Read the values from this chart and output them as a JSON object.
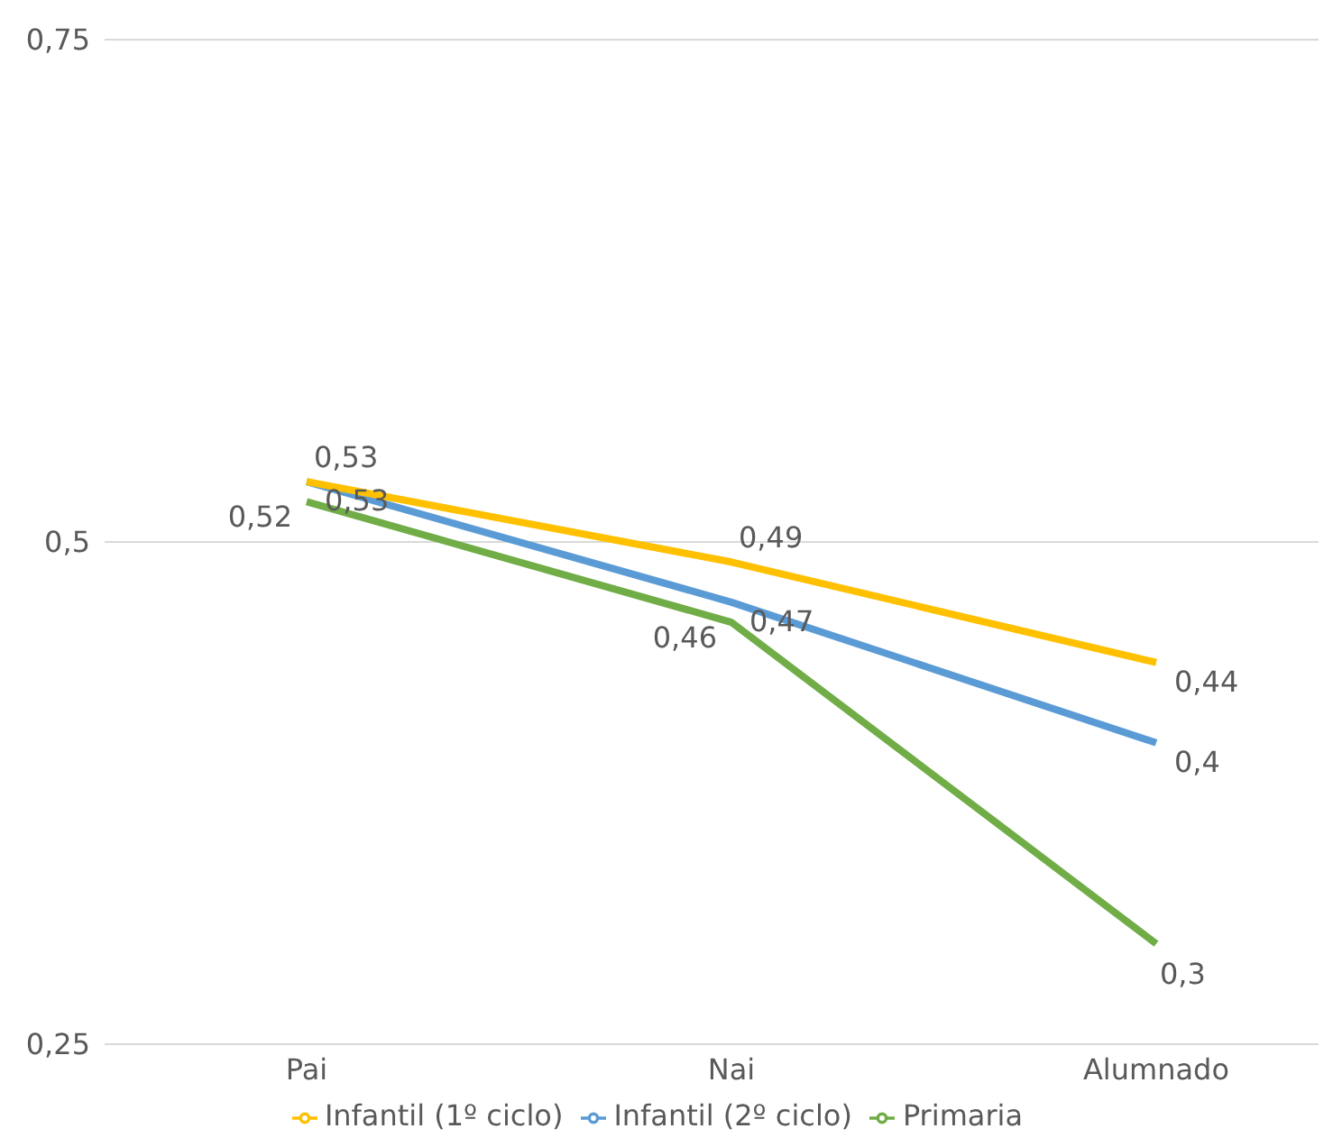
{
  "chart_data": {
    "type": "line",
    "categories": [
      "Pai",
      "Nai",
      "Alumnado"
    ],
    "series": [
      {
        "name": "Primaria",
        "color": "#70ad47",
        "values": [
          0.52,
          0.46,
          0.3
        ],
        "value_labels": [
          "0,52",
          "0,46",
          "0,3"
        ]
      },
      {
        "name": "Infantil (2º ciclo)",
        "color": "#5b9bd5",
        "values": [
          0.53,
          0.47,
          0.4
        ],
        "value_labels": [
          "0,53",
          "0,47",
          "0,4"
        ]
      },
      {
        "name": "Infantil (1º ciclo)",
        "color": "#ffc000",
        "values": [
          0.53,
          0.49,
          0.44
        ],
        "value_labels": [
          "0,53",
          "0,49",
          "0,44"
        ]
      }
    ],
    "ylim": [
      0.25,
      0.75
    ],
    "yticks": [
      {
        "value": 0.25,
        "label": "0,25"
      },
      {
        "value": 0.5,
        "label": "0,5"
      },
      {
        "value": 0.75,
        "label": "0,75"
      }
    ],
    "grid": "y",
    "legend": "bottom",
    "marker": "none",
    "line_style": "solid"
  }
}
